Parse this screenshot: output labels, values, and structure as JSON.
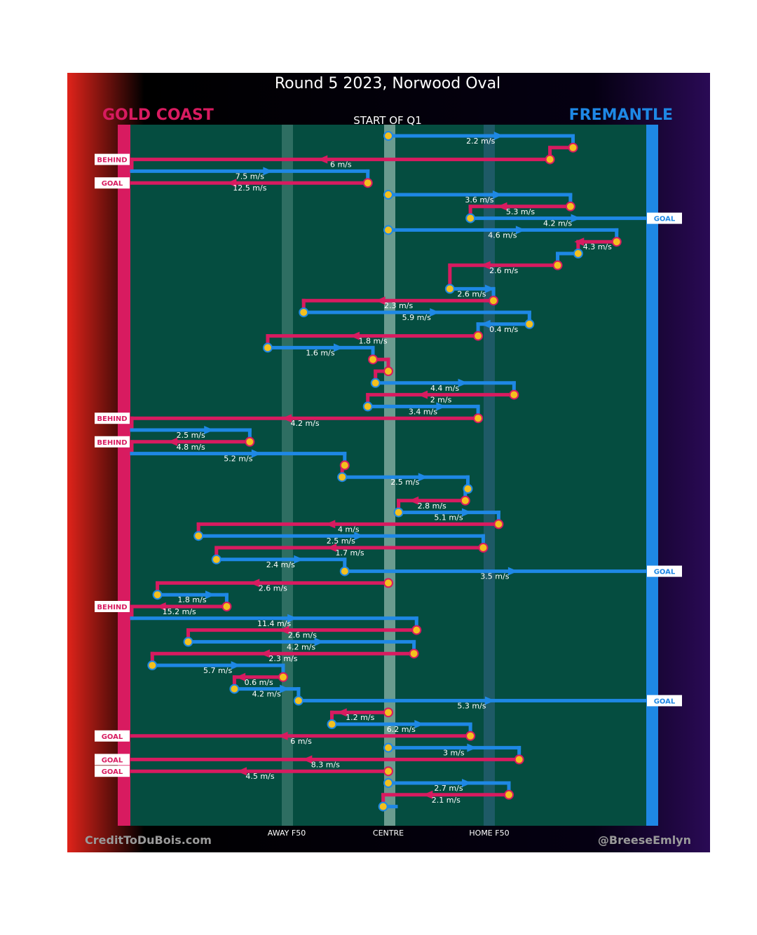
{
  "chart_data": {
    "type": "line",
    "title": "Round 5 2023, Norwood Oval",
    "subtitle": "START OF Q1",
    "teams": {
      "left": {
        "name": "GOLD COAST",
        "color": "#d81b60"
      },
      "right": {
        "name": "FREMANTLE",
        "color": "#1e88e5"
      }
    },
    "x_axis_labels": [
      "AWAY F50",
      "CENTRE",
      "HOME F50"
    ],
    "credits": {
      "left": "CreditToDuBois.com",
      "right": "@BreeseEmlyn"
    },
    "colors": {
      "pitch": "#054d40",
      "stoppage": "#f4c01e",
      "bg_dark": "#000000"
    },
    "stoppage_x": [
      0.0,
      0.72,
      0.63,
      0.0,
      -0.16,
      0.05,
      0.1,
      -0.15,
      0.6,
      0.59,
      -0.12,
      0.44,
      0.22,
      -0.3,
      0.03,
      0.04,
      -0.04,
      0.24,
      0.22,
      -0.14,
      -0.05,
      -0.4,
      0.09,
      0.07,
      -0.38,
      0.58,
      -0.31
    ],
    "segments": [
      {
        "x1": 0.0,
        "x2": 0.72,
        "y": 0,
        "team": "fre",
        "speed": "2.2 m/s"
      },
      {
        "x1": 0.72,
        "x2": 0.63,
        "y": 1,
        "team": "gc",
        "speed": ""
      },
      {
        "x1": 0.63,
        "x2": -1.0,
        "y": 2,
        "team": "gc",
        "speed": "6 m/s",
        "end": "BEHIND"
      },
      {
        "x1": -1.0,
        "x2": -0.08,
        "y": 3,
        "team": "fre",
        "speed": "7.5 m/s"
      },
      {
        "x1": -0.08,
        "x2": -1.0,
        "y": 4,
        "team": "gc",
        "speed": "12.5 m/s",
        "end": "GOAL"
      },
      {
        "x1": 0.0,
        "x2": 0.71,
        "y": 5,
        "team": "fre",
        "speed": "3.6 m/s"
      },
      {
        "x1": 0.71,
        "x2": 0.32,
        "y": 6,
        "team": "gc",
        "speed": "5.3 m/s"
      },
      {
        "x1": 0.32,
        "x2": 1.0,
        "y": 7,
        "team": "fre",
        "speed": "4.2 m/s",
        "end": "GOAL"
      },
      {
        "x1": 0.0,
        "x2": 0.89,
        "y": 8,
        "team": "fre",
        "speed": "4.6 m/s"
      },
      {
        "x1": 0.89,
        "x2": 0.74,
        "y": 9,
        "team": "gc",
        "speed": "4.3 m/s"
      },
      {
        "x1": 0.74,
        "x2": 0.66,
        "y": 10,
        "team": "fre",
        "speed": ""
      },
      {
        "x1": 0.66,
        "x2": 0.24,
        "y": 11,
        "team": "gc",
        "speed": "2.6 m/s"
      },
      {
        "x1": 0.24,
        "x2": 0.41,
        "y": 13,
        "team": "fre",
        "speed": "2.6 m/s"
      },
      {
        "x1": 0.41,
        "x2": -0.33,
        "y": 14,
        "team": "gc",
        "speed": "2.3 m/s"
      },
      {
        "x1": -0.33,
        "x2": 0.55,
        "y": 15,
        "team": "fre",
        "speed": "5.9 m/s"
      },
      {
        "x1": 0.55,
        "x2": 0.35,
        "y": 16,
        "team": "fre",
        "speed": "0.4 m/s"
      },
      {
        "x1": 0.35,
        "x2": -0.47,
        "y": 17,
        "team": "gc",
        "speed": "1.8 m/s"
      },
      {
        "x1": -0.47,
        "x2": -0.06,
        "y": 18,
        "team": "fre",
        "speed": "1.6 m/s"
      },
      {
        "x1": -0.06,
        "x2": 0.0,
        "y": 19,
        "team": "gc",
        "speed": ""
      },
      {
        "x1": 0.0,
        "x2": -0.05,
        "y": 20,
        "team": "gc",
        "speed": ""
      },
      {
        "x1": -0.05,
        "x2": 0.49,
        "y": 21,
        "team": "fre",
        "speed": "4.4 m/s"
      },
      {
        "x1": 0.49,
        "x2": -0.08,
        "y": 22,
        "team": "gc",
        "speed": "2 m/s"
      },
      {
        "x1": -0.08,
        "x2": 0.35,
        "y": 23,
        "team": "fre",
        "speed": "3.4 m/s"
      },
      {
        "x1": 0.35,
        "x2": -1.0,
        "y": 24,
        "team": "gc",
        "speed": "4.2 m/s",
        "end": "BEHIND"
      },
      {
        "x1": -1.0,
        "x2": -0.54,
        "y": 25,
        "team": "fre",
        "speed": "2.5 m/s"
      },
      {
        "x1": -0.54,
        "x2": -1.0,
        "y": 26,
        "team": "gc",
        "speed": "4.8 m/s",
        "end": "BEHIND"
      },
      {
        "x1": -1.0,
        "x2": -0.17,
        "y": 27,
        "team": "fre",
        "speed": "5.2 m/s"
      },
      {
        "x1": -0.17,
        "x2": -0.18,
        "y": 28,
        "team": "gc",
        "speed": ""
      },
      {
        "x1": -0.18,
        "x2": 0.31,
        "y": 29,
        "team": "fre",
        "speed": "2.5 m/s"
      },
      {
        "x1": 0.31,
        "x2": 0.3,
        "y": 30,
        "team": "fre",
        "speed": ""
      },
      {
        "x1": 0.3,
        "x2": 0.04,
        "y": 31,
        "team": "gc",
        "speed": "2.8 m/s"
      },
      {
        "x1": 0.04,
        "x2": 0.43,
        "y": 32,
        "team": "fre",
        "speed": "5.1 m/s"
      },
      {
        "x1": 0.43,
        "x2": -0.74,
        "y": 33,
        "team": "gc",
        "speed": "4 m/s"
      },
      {
        "x1": -0.74,
        "x2": 0.37,
        "y": 34,
        "team": "fre",
        "speed": "2.5 m/s"
      },
      {
        "x1": 0.37,
        "x2": -0.67,
        "y": 35,
        "team": "gc",
        "speed": "1.7 m/s"
      },
      {
        "x1": -0.67,
        "x2": -0.17,
        "y": 36,
        "team": "fre",
        "speed": "2.4 m/s"
      },
      {
        "x1": -0.17,
        "x2": 1.0,
        "y": 37,
        "team": "fre",
        "speed": "3.5 m/s",
        "end": "GOAL"
      },
      {
        "x1": 0.0,
        "x2": -0.9,
        "y": 38,
        "team": "gc",
        "speed": "2.6 m/s"
      },
      {
        "x1": -0.9,
        "x2": -0.63,
        "y": 39,
        "team": "fre",
        "speed": "1.8 m/s"
      },
      {
        "x1": -0.63,
        "x2": -1.0,
        "y": 40,
        "team": "gc",
        "speed": "15.2 m/s",
        "end": "BEHIND"
      },
      {
        "x1": -1.0,
        "x2": 0.11,
        "y": 41,
        "team": "fre",
        "speed": "11.4 m/s"
      },
      {
        "x1": 0.11,
        "x2": -0.78,
        "y": 42,
        "team": "gc",
        "speed": "2.6 m/s"
      },
      {
        "x1": -0.78,
        "x2": 0.1,
        "y": 43,
        "team": "fre",
        "speed": "4.2 m/s"
      },
      {
        "x1": 0.1,
        "x2": -0.92,
        "y": 44,
        "team": "gc",
        "speed": "2.3 m/s"
      },
      {
        "x1": -0.92,
        "x2": -0.41,
        "y": 45,
        "team": "fre",
        "speed": "5.7 m/s"
      },
      {
        "x1": -0.41,
        "x2": -0.6,
        "y": 46,
        "team": "gc",
        "speed": "0.6 m/s"
      },
      {
        "x1": -0.6,
        "x2": -0.35,
        "y": 47,
        "team": "fre",
        "speed": "4.2 m/s"
      },
      {
        "x1": -0.35,
        "x2": 1.0,
        "y": 48,
        "team": "fre",
        "speed": "5.3 m/s",
        "end": "GOAL"
      },
      {
        "x1": 0.0,
        "x2": -0.22,
        "y": 49,
        "team": "gc",
        "speed": "1.2 m/s"
      },
      {
        "x1": -0.22,
        "x2": 0.32,
        "y": 50,
        "team": "fre",
        "speed": "6.2 m/s"
      },
      {
        "x1": 0.32,
        "x2": -1.0,
        "y": 51,
        "team": "gc",
        "speed": "6 m/s",
        "end": "GOAL"
      },
      {
        "x1": 0.0,
        "x2": 0.51,
        "y": 52,
        "team": "fre",
        "speed": "3 m/s"
      },
      {
        "x1": 0.51,
        "x2": -1.0,
        "y": 53,
        "team": "gc",
        "speed": "8.3 m/s",
        "end": "GOAL"
      },
      {
        "x1": 0.0,
        "x2": -1.0,
        "y": 54,
        "team": "gc",
        "speed": "4.5 m/s",
        "end": "GOAL"
      },
      {
        "x1": 0.0,
        "x2": 0.47,
        "y": 55,
        "team": "fre",
        "speed": "2.7 m/s"
      },
      {
        "x1": 0.47,
        "x2": -0.02,
        "y": 56,
        "team": "gc",
        "speed": "2.1 m/s"
      },
      {
        "x1": -0.02,
        "x2": 0.03,
        "y": 57,
        "team": "fre",
        "speed": ""
      }
    ]
  }
}
